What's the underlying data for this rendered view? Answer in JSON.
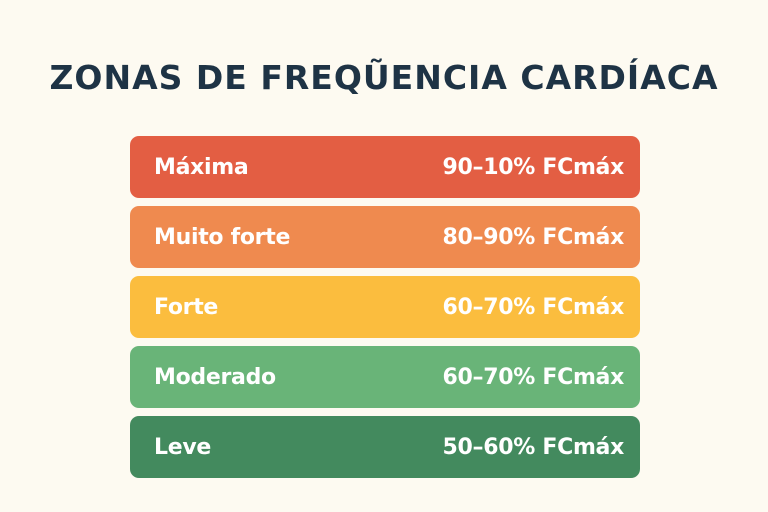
{
  "title": "ZONAS DE FREQŨENCIA CARDÍACA",
  "zones": [
    {
      "name": "Máxima",
      "range": "90–10% FCmáx",
      "color": "#e35e43"
    },
    {
      "name": "Muito forte",
      "range": "80–90% FCmáx",
      "color": "#ef8a4f"
    },
    {
      "name": "Forte",
      "range": "60–70% FCmáx",
      "color": "#fbbd3e"
    },
    {
      "name": "Moderado",
      "range": "60–70% FCmáx",
      "color": "#69b478"
    },
    {
      "name": "Leve",
      "range": "50–60% FCmáx",
      "color": "#438a5e"
    }
  ]
}
